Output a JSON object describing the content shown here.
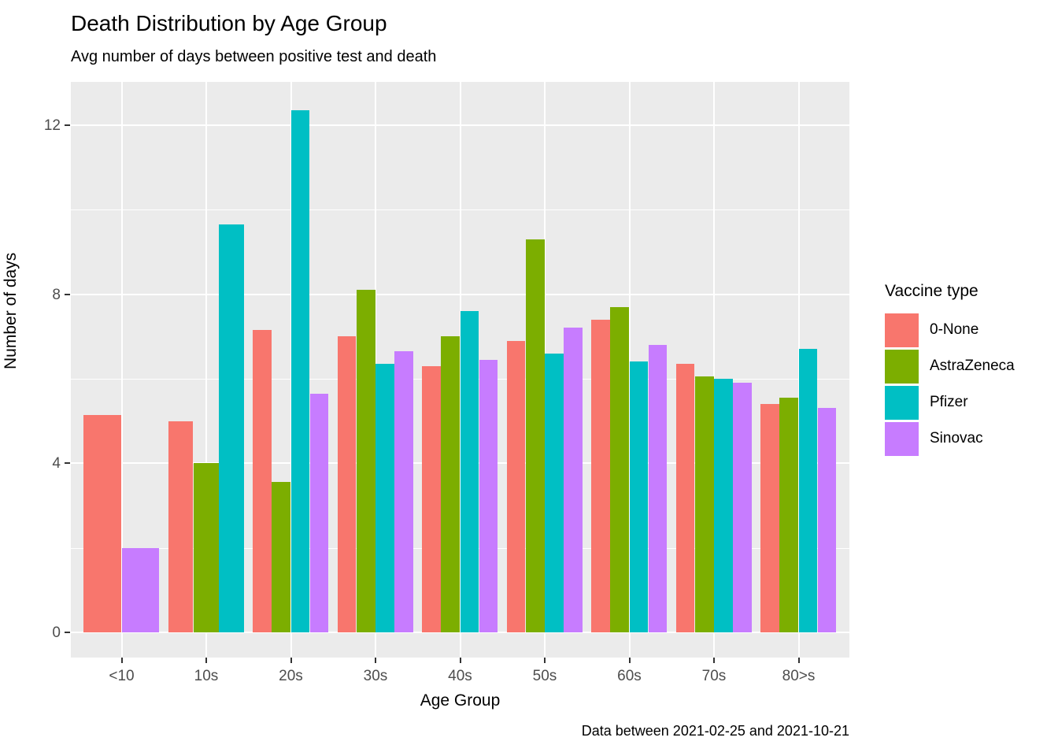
{
  "chart_data": {
    "type": "bar",
    "bar_mode": "dodge",
    "title": "Death Distribution by Age Group",
    "subtitle": "Avg number of days between positive test and death",
    "caption": "Data between 2021-02-25 and 2021-10-21",
    "xlabel": "Age Group",
    "ylabel": "Number of days",
    "categories": [
      "<10",
      "10s",
      "20s",
      "30s",
      "40s",
      "50s",
      "60s",
      "70s",
      "80>s"
    ],
    "series": [
      {
        "name": "0-None",
        "color": "#F8766D",
        "values": [
          5.15,
          5.0,
          7.15,
          7.0,
          6.3,
          6.9,
          7.4,
          6.35,
          5.4
        ]
      },
      {
        "name": "AstraZeneca",
        "color": "#7CAE00",
        "values": [
          null,
          4.0,
          3.55,
          8.1,
          7.0,
          9.3,
          7.7,
          6.05,
          5.55
        ]
      },
      {
        "name": "Pfizer",
        "color": "#00BFC4",
        "values": [
          null,
          9.65,
          12.35,
          6.35,
          7.6,
          6.6,
          6.4,
          6.0,
          6.7
        ]
      },
      {
        "name": "Sinovac",
        "color": "#C77CFF",
        "values": [
          2.0,
          null,
          5.65,
          6.65,
          6.45,
          7.2,
          6.8,
          5.9,
          5.3
        ]
      }
    ],
    "ylim": [
      0,
      12.95
    ],
    "yticks": [
      0,
      4,
      8,
      12
    ],
    "yticks_minor": [
      2,
      6,
      10
    ],
    "grid": "on",
    "legend_title": "Vaccine type",
    "legend_position": "right"
  },
  "style_colors": {
    "panel_background": "#EBEBEB",
    "grid_color": "#FFFFFF",
    "tick_label_color": "#4D4D4D",
    "tick_mark_color": "#333333",
    "text_color": "#000000",
    "legend_key_background": "#F2F2F2"
  }
}
